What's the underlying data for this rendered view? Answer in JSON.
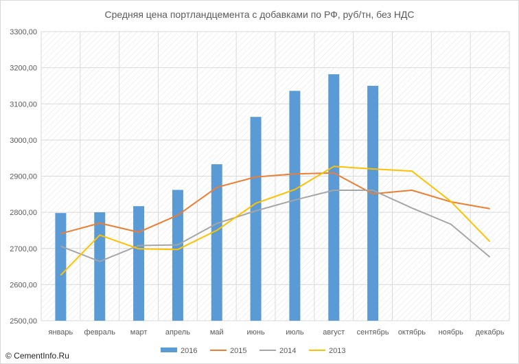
{
  "chart_data": {
    "type": "bar+line",
    "title": "Средняя цена портландцемента с добавками по РФ, руб/тн, без НДС",
    "categories": [
      "январь",
      "февраль",
      "март",
      "апрель",
      "май",
      "июнь",
      "июль",
      "август",
      "сентябрь",
      "октябрь",
      "ноябрь",
      "декабрь"
    ],
    "ylim": [
      2500,
      3300
    ],
    "yticks": [
      "2500,00",
      "2600,00",
      "2700,00",
      "2800,00",
      "2900,00",
      "3000,00",
      "3100,00",
      "3200,00",
      "3300,00"
    ],
    "grid": true,
    "legend_position": "bottom",
    "series": [
      {
        "name": "2016",
        "kind": "bar",
        "color": "#5b9bd5",
        "values": [
          2798,
          2800,
          2817,
          2862,
          2933,
          3064,
          3136,
          3182,
          3150,
          null,
          null,
          null
        ]
      },
      {
        "name": "2015",
        "kind": "line",
        "color": "#ed7d31",
        "values": [
          2741,
          2770,
          2745,
          2792,
          2869,
          2898,
          2906,
          2909,
          2851,
          2861,
          2829,
          2810
        ]
      },
      {
        "name": "2014",
        "kind": "line",
        "color": "#a5a5a5",
        "values": [
          2706,
          2664,
          2708,
          2710,
          2769,
          2804,
          2834,
          2861,
          2861,
          2812,
          2767,
          2676
        ]
      },
      {
        "name": "2013",
        "kind": "line",
        "color": "#ffc000",
        "values": [
          2626,
          2737,
          2699,
          2697,
          2750,
          2825,
          2863,
          2927,
          2920,
          2914,
          2830,
          2719
        ]
      }
    ]
  },
  "copyright": "© CementInfo.Ru"
}
